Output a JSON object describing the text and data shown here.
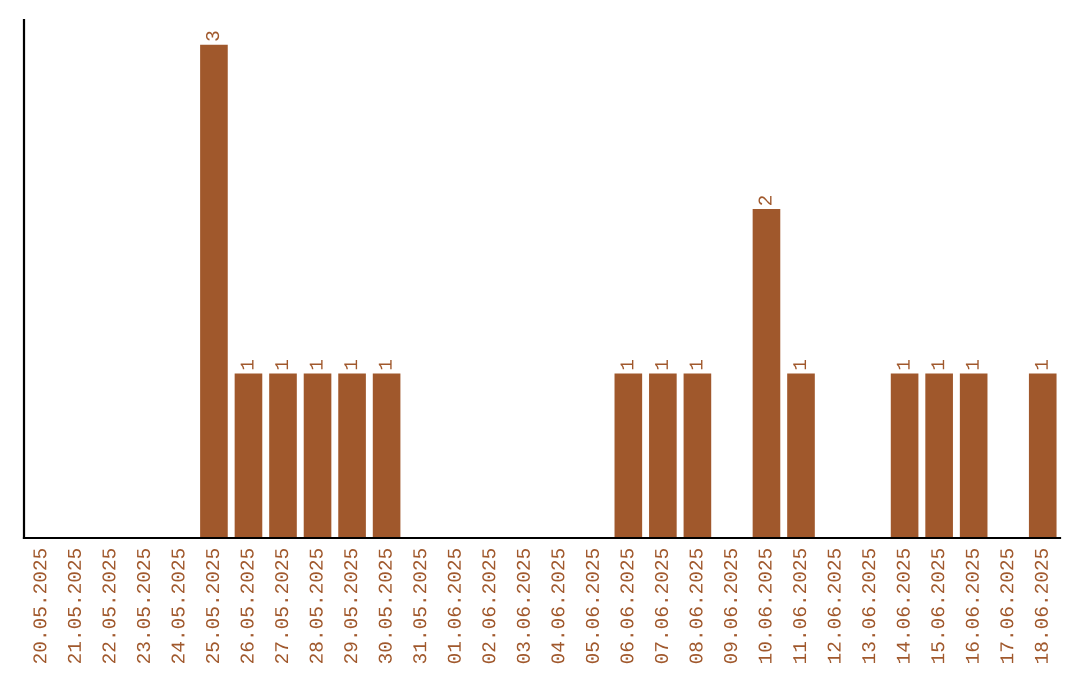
{
  "chart_data": {
    "type": "bar",
    "categories": [
      "20.05.2025",
      "21.05.2025",
      "22.05.2025",
      "23.05.2025",
      "24.05.2025",
      "25.05.2025",
      "26.05.2025",
      "27.05.2025",
      "28.05.2025",
      "29.05.2025",
      "30.05.2025",
      "31.05.2025",
      "01.06.2025",
      "02.06.2025",
      "03.06.2025",
      "04.06.2025",
      "05.06.2025",
      "06.06.2025",
      "07.06.2025",
      "08.06.2025",
      "09.06.2025",
      "10.06.2025",
      "11.06.2025",
      "12.06.2025",
      "13.06.2025",
      "14.06.2025",
      "15.06.2025",
      "16.06.2025",
      "17.06.2025",
      "18.06.2025"
    ],
    "values": [
      0,
      0,
      0,
      0,
      0,
      3,
      1,
      1,
      1,
      1,
      1,
      0,
      0,
      0,
      0,
      0,
      0,
      1,
      1,
      1,
      0,
      2,
      1,
      0,
      0,
      1,
      1,
      1,
      0,
      1
    ],
    "value_labels": [
      null,
      null,
      null,
      null,
      null,
      "3",
      "1",
      "1",
      "1",
      "1",
      "1",
      null,
      null,
      null,
      null,
      null,
      null,
      "1",
      "1",
      "1",
      null,
      "2",
      "1",
      null,
      null,
      "1",
      "1",
      "1",
      null,
      "1"
    ],
    "color": "#a0582c",
    "tick_labels": "x",
    "grid": false,
    "legend": false
  }
}
